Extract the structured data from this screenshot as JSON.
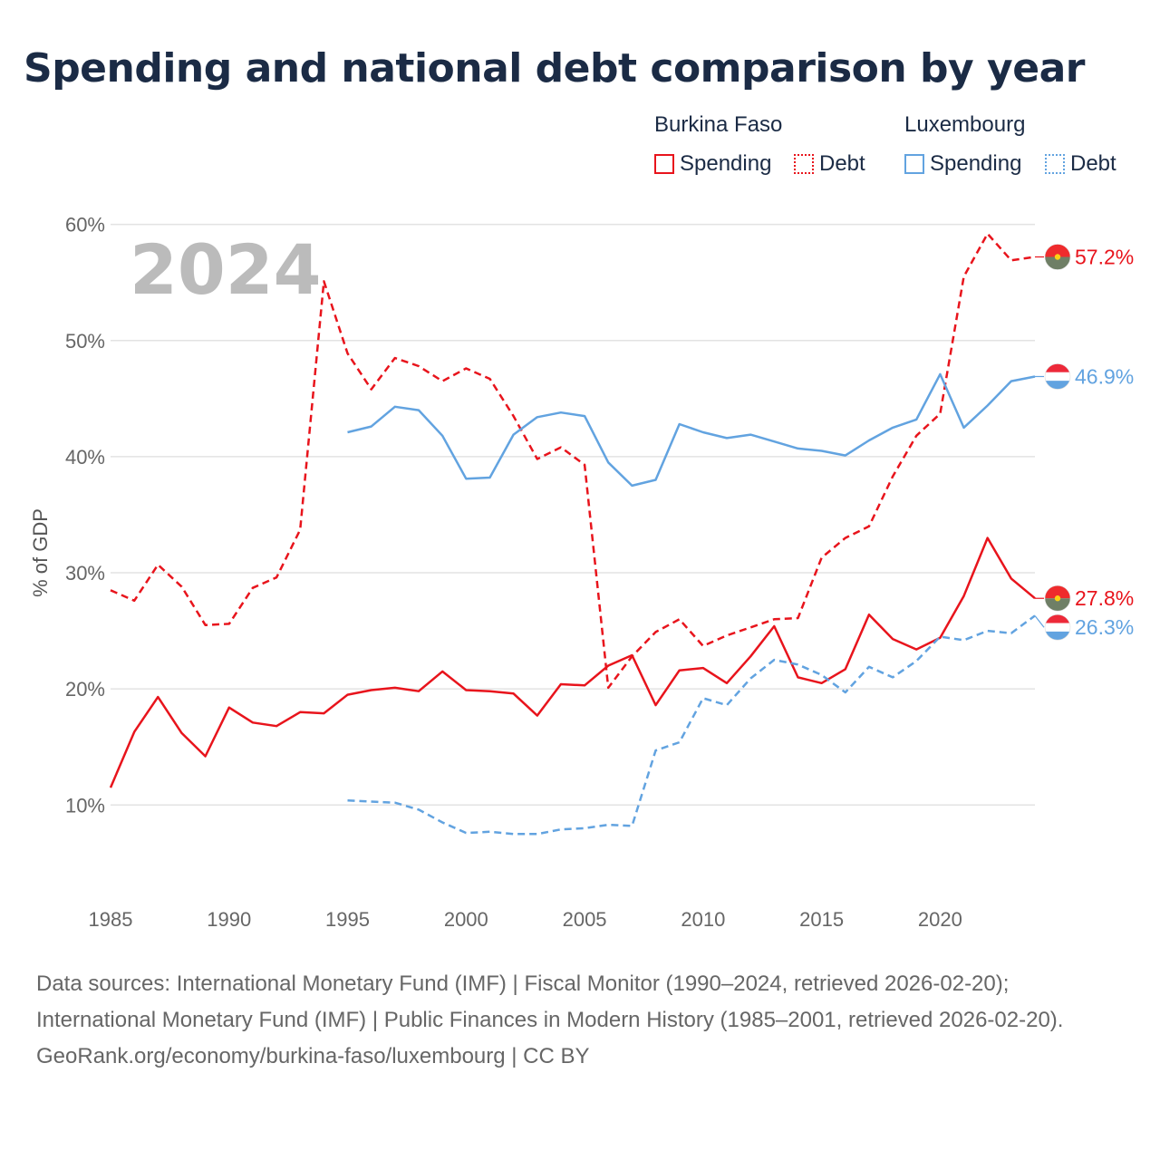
{
  "title": "Spending and national debt comparison by year",
  "legend": {
    "groups": [
      {
        "name": "Burkina Faso",
        "color": "#e8141c",
        "spending_label": "Spending",
        "debt_label": "Debt"
      },
      {
        "name": "Luxembourg",
        "color": "#62a3e0",
        "spending_label": "Spending",
        "debt_label": "Debt"
      }
    ]
  },
  "chart_data": {
    "type": "line",
    "title": "Spending and national debt comparison by year",
    "ylabel": "% of GDP",
    "xlabel": "",
    "year_label": "2024",
    "xlim": [
      1985,
      2024
    ],
    "ylim": [
      3,
      62
    ],
    "xticks": [
      1985,
      1990,
      1995,
      2000,
      2005,
      2010,
      2015,
      2020
    ],
    "yticks": [
      {
        "value": 10,
        "label": "10%"
      },
      {
        "value": 20,
        "label": "20%"
      },
      {
        "value": 30,
        "label": "30%"
      },
      {
        "value": 40,
        "label": "40%"
      },
      {
        "value": 50,
        "label": "50%"
      },
      {
        "value": 60,
        "label": "60%"
      }
    ],
    "series": [
      {
        "name": "Burkina Faso Debt",
        "country": "Burkina Faso",
        "kind": "debt",
        "color": "#e8141c",
        "style": "dashed",
        "end_label": "57.2%",
        "flag": "burkina-faso",
        "x": [
          1985,
          1986,
          1987,
          1988,
          1989,
          1990,
          1991,
          1992,
          1993,
          1994,
          1995,
          1996,
          1997,
          1998,
          1999,
          2000,
          2001,
          2002,
          2003,
          2004,
          2005,
          2006,
          2007,
          2008,
          2009,
          2010,
          2011,
          2012,
          2013,
          2014,
          2015,
          2016,
          2017,
          2018,
          2019,
          2020,
          2021,
          2022,
          2023,
          2024
        ],
        "values": [
          28.5,
          27.6,
          30.7,
          28.8,
          25.5,
          25.6,
          28.7,
          29.6,
          33.7,
          55.1,
          48.9,
          45.8,
          48.5,
          47.8,
          46.5,
          47.6,
          46.7,
          43.5,
          39.8,
          40.8,
          39.3,
          20.1,
          22.8,
          24.9,
          26.0,
          23.7,
          24.6,
          25.3,
          26.0,
          26.1,
          31.3,
          33.0,
          34.0,
          38.3,
          41.8,
          43.7,
          55.5,
          59.2,
          56.9,
          57.2
        ]
      },
      {
        "name": "Burkina Faso Spending",
        "country": "Burkina Faso",
        "kind": "spending",
        "color": "#e8141c",
        "style": "solid",
        "end_label": "27.8%",
        "flag": "burkina-faso",
        "x": [
          1985,
          1986,
          1987,
          1988,
          1989,
          1990,
          1991,
          1992,
          1993,
          1994,
          1995,
          1996,
          1997,
          1998,
          1999,
          2000,
          2001,
          2002,
          2003,
          2004,
          2005,
          2006,
          2007,
          2008,
          2009,
          2010,
          2011,
          2012,
          2013,
          2014,
          2015,
          2016,
          2017,
          2018,
          2019,
          2020,
          2021,
          2022,
          2023,
          2024
        ],
        "values": [
          11.5,
          16.3,
          19.3,
          16.2,
          14.2,
          18.4,
          17.1,
          16.8,
          18.0,
          17.9,
          19.5,
          19.9,
          20.1,
          19.8,
          21.5,
          19.9,
          19.8,
          19.6,
          17.7,
          20.4,
          20.3,
          22.0,
          22.9,
          18.6,
          21.6,
          21.8,
          20.5,
          22.8,
          25.4,
          21.0,
          20.5,
          21.7,
          26.4,
          24.3,
          23.4,
          24.4,
          28.0,
          33.0,
          29.5,
          27.8
        ]
      },
      {
        "name": "Luxembourg Spending",
        "country": "Luxembourg",
        "kind": "spending",
        "color": "#62a3e0",
        "style": "solid",
        "end_label": "46.9%",
        "flag": "luxembourg",
        "x": [
          1995,
          1996,
          1997,
          1998,
          1999,
          2000,
          2001,
          2002,
          2003,
          2004,
          2005,
          2006,
          2007,
          2008,
          2009,
          2010,
          2011,
          2012,
          2013,
          2014,
          2015,
          2016,
          2017,
          2018,
          2019,
          2020,
          2021,
          2022,
          2023,
          2024
        ],
        "values": [
          42.1,
          42.6,
          44.3,
          44.0,
          41.8,
          38.1,
          38.2,
          41.9,
          43.4,
          43.8,
          43.5,
          39.5,
          37.5,
          38.0,
          42.8,
          42.1,
          41.6,
          41.9,
          41.3,
          40.7,
          40.5,
          40.1,
          41.4,
          42.5,
          43.2,
          47.1,
          42.5,
          44.4,
          46.5,
          46.9
        ]
      },
      {
        "name": "Luxembourg Debt",
        "country": "Luxembourg",
        "kind": "debt",
        "color": "#62a3e0",
        "style": "dashed",
        "end_label": "26.3%",
        "flag": "luxembourg",
        "x": [
          1995,
          1996,
          1997,
          1998,
          1999,
          2000,
          2001,
          2002,
          2003,
          2004,
          2005,
          2006,
          2007,
          2008,
          2009,
          2010,
          2011,
          2012,
          2013,
          2014,
          2015,
          2016,
          2017,
          2018,
          2019,
          2020,
          2021,
          2022,
          2023,
          2024
        ],
        "values": [
          10.4,
          10.3,
          10.2,
          9.6,
          8.5,
          7.6,
          7.7,
          7.5,
          7.5,
          7.9,
          8.0,
          8.3,
          8.2,
          14.7,
          15.4,
          19.2,
          18.6,
          20.9,
          22.5,
          22.1,
          21.2,
          19.7,
          21.9,
          21.0,
          22.4,
          24.5,
          24.2,
          25.0,
          24.8,
          26.3
        ]
      }
    ]
  },
  "footer": {
    "sources": "Data sources: International Monetary Fund (IMF) | Fiscal Monitor (1990–2024, retrieved 2026-02-20); International Monetary Fund (IMF) | Public Finances in Modern History (1985–2001, retrieved 2026-02-20).",
    "credit": "GeoRank.org/economy/burkina-faso/luxembourg | CC BY"
  }
}
